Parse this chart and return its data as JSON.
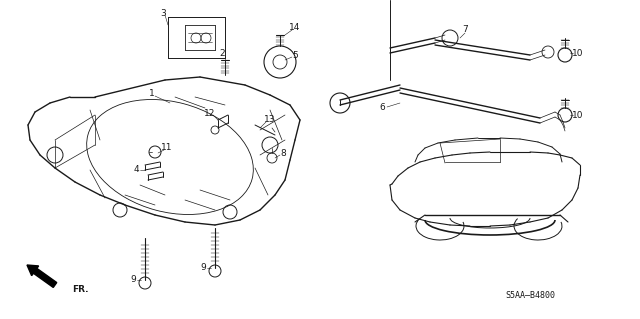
{
  "bg_color": "#ffffff",
  "fig_width": 6.4,
  "fig_height": 3.19,
  "dpi": 100,
  "code": "S5AA–B4800",
  "line_color": "#1a1a1a",
  "label_color": "#1a1a1a",
  "label_fontsize": 6.5
}
